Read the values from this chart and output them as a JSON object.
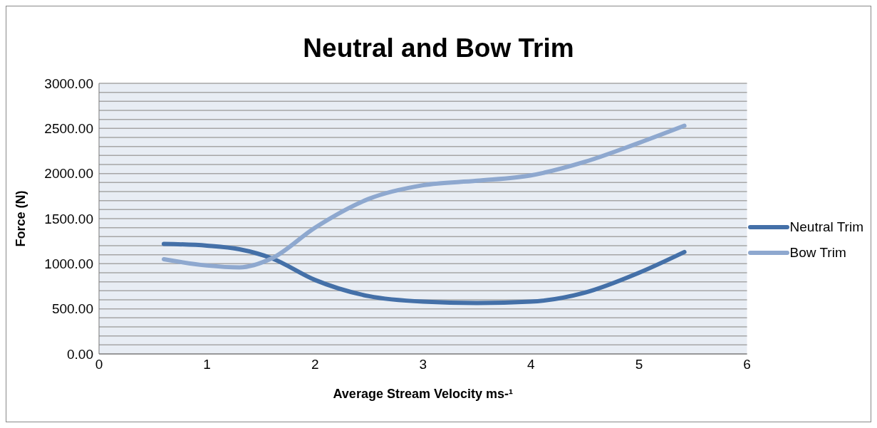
{
  "chart_data": {
    "type": "line",
    "title": "Neutral and Bow Trim",
    "xlabel": "Average Stream Velocity ms-¹",
    "ylabel": "Force (N)",
    "x": [
      0.6,
      1.0,
      1.3,
      1.6,
      2.0,
      2.5,
      3.0,
      3.5,
      4.0,
      4.5,
      5.0,
      5.42
    ],
    "series": [
      {
        "name": "Neutral Trim",
        "color": "#4470a8",
        "values": [
          1220,
          1200,
          1160,
          1060,
          820,
          640,
          580,
          565,
          580,
          680,
          900,
          1130
        ]
      },
      {
        "name": "Bow Trim",
        "color": "#8ea8cf",
        "values": [
          1050,
          980,
          960,
          1060,
          1400,
          1720,
          1870,
          1920,
          1980,
          2130,
          2340,
          2530
        ]
      }
    ],
    "xlim": [
      0,
      6
    ],
    "xticks": [
      0,
      1,
      2,
      3,
      4,
      5,
      6
    ],
    "ylim": [
      0,
      3000
    ],
    "yticks": [
      {
        "value": 0,
        "label": "0.00"
      },
      {
        "value": 100,
        "label": null
      },
      {
        "value": 200,
        "label": null
      },
      {
        "value": 300,
        "label": null
      },
      {
        "value": 400,
        "label": null
      },
      {
        "value": 500,
        "label": "500.00"
      },
      {
        "value": 600,
        "label": null
      },
      {
        "value": 700,
        "label": null
      },
      {
        "value": 800,
        "label": null
      },
      {
        "value": 900,
        "label": null
      },
      {
        "value": 1000,
        "label": "1000.00"
      },
      {
        "value": 1100,
        "label": null
      },
      {
        "value": 1200,
        "label": null
      },
      {
        "value": 1300,
        "label": null
      },
      {
        "value": 1400,
        "label": null
      },
      {
        "value": 1500,
        "label": "1500.00"
      },
      {
        "value": 1600,
        "label": null
      },
      {
        "value": 1700,
        "label": null
      },
      {
        "value": 1800,
        "label": null
      },
      {
        "value": 1900,
        "label": null
      },
      {
        "value": 2000,
        "label": "2000.00"
      },
      {
        "value": 2100,
        "label": null
      },
      {
        "value": 2200,
        "label": null
      },
      {
        "value": 2300,
        "label": null
      },
      {
        "value": 2400,
        "label": null
      },
      {
        "value": 2500,
        "label": "2500.00"
      },
      {
        "value": 2600,
        "label": null
      },
      {
        "value": 2700,
        "label": null
      },
      {
        "value": 2800,
        "label": null
      },
      {
        "value": 2900,
        "label": null
      },
      {
        "value": 3000,
        "label": "3000.00"
      }
    ],
    "grid": "y",
    "legend": "right",
    "marker": "none",
    "line_style": "solid"
  }
}
